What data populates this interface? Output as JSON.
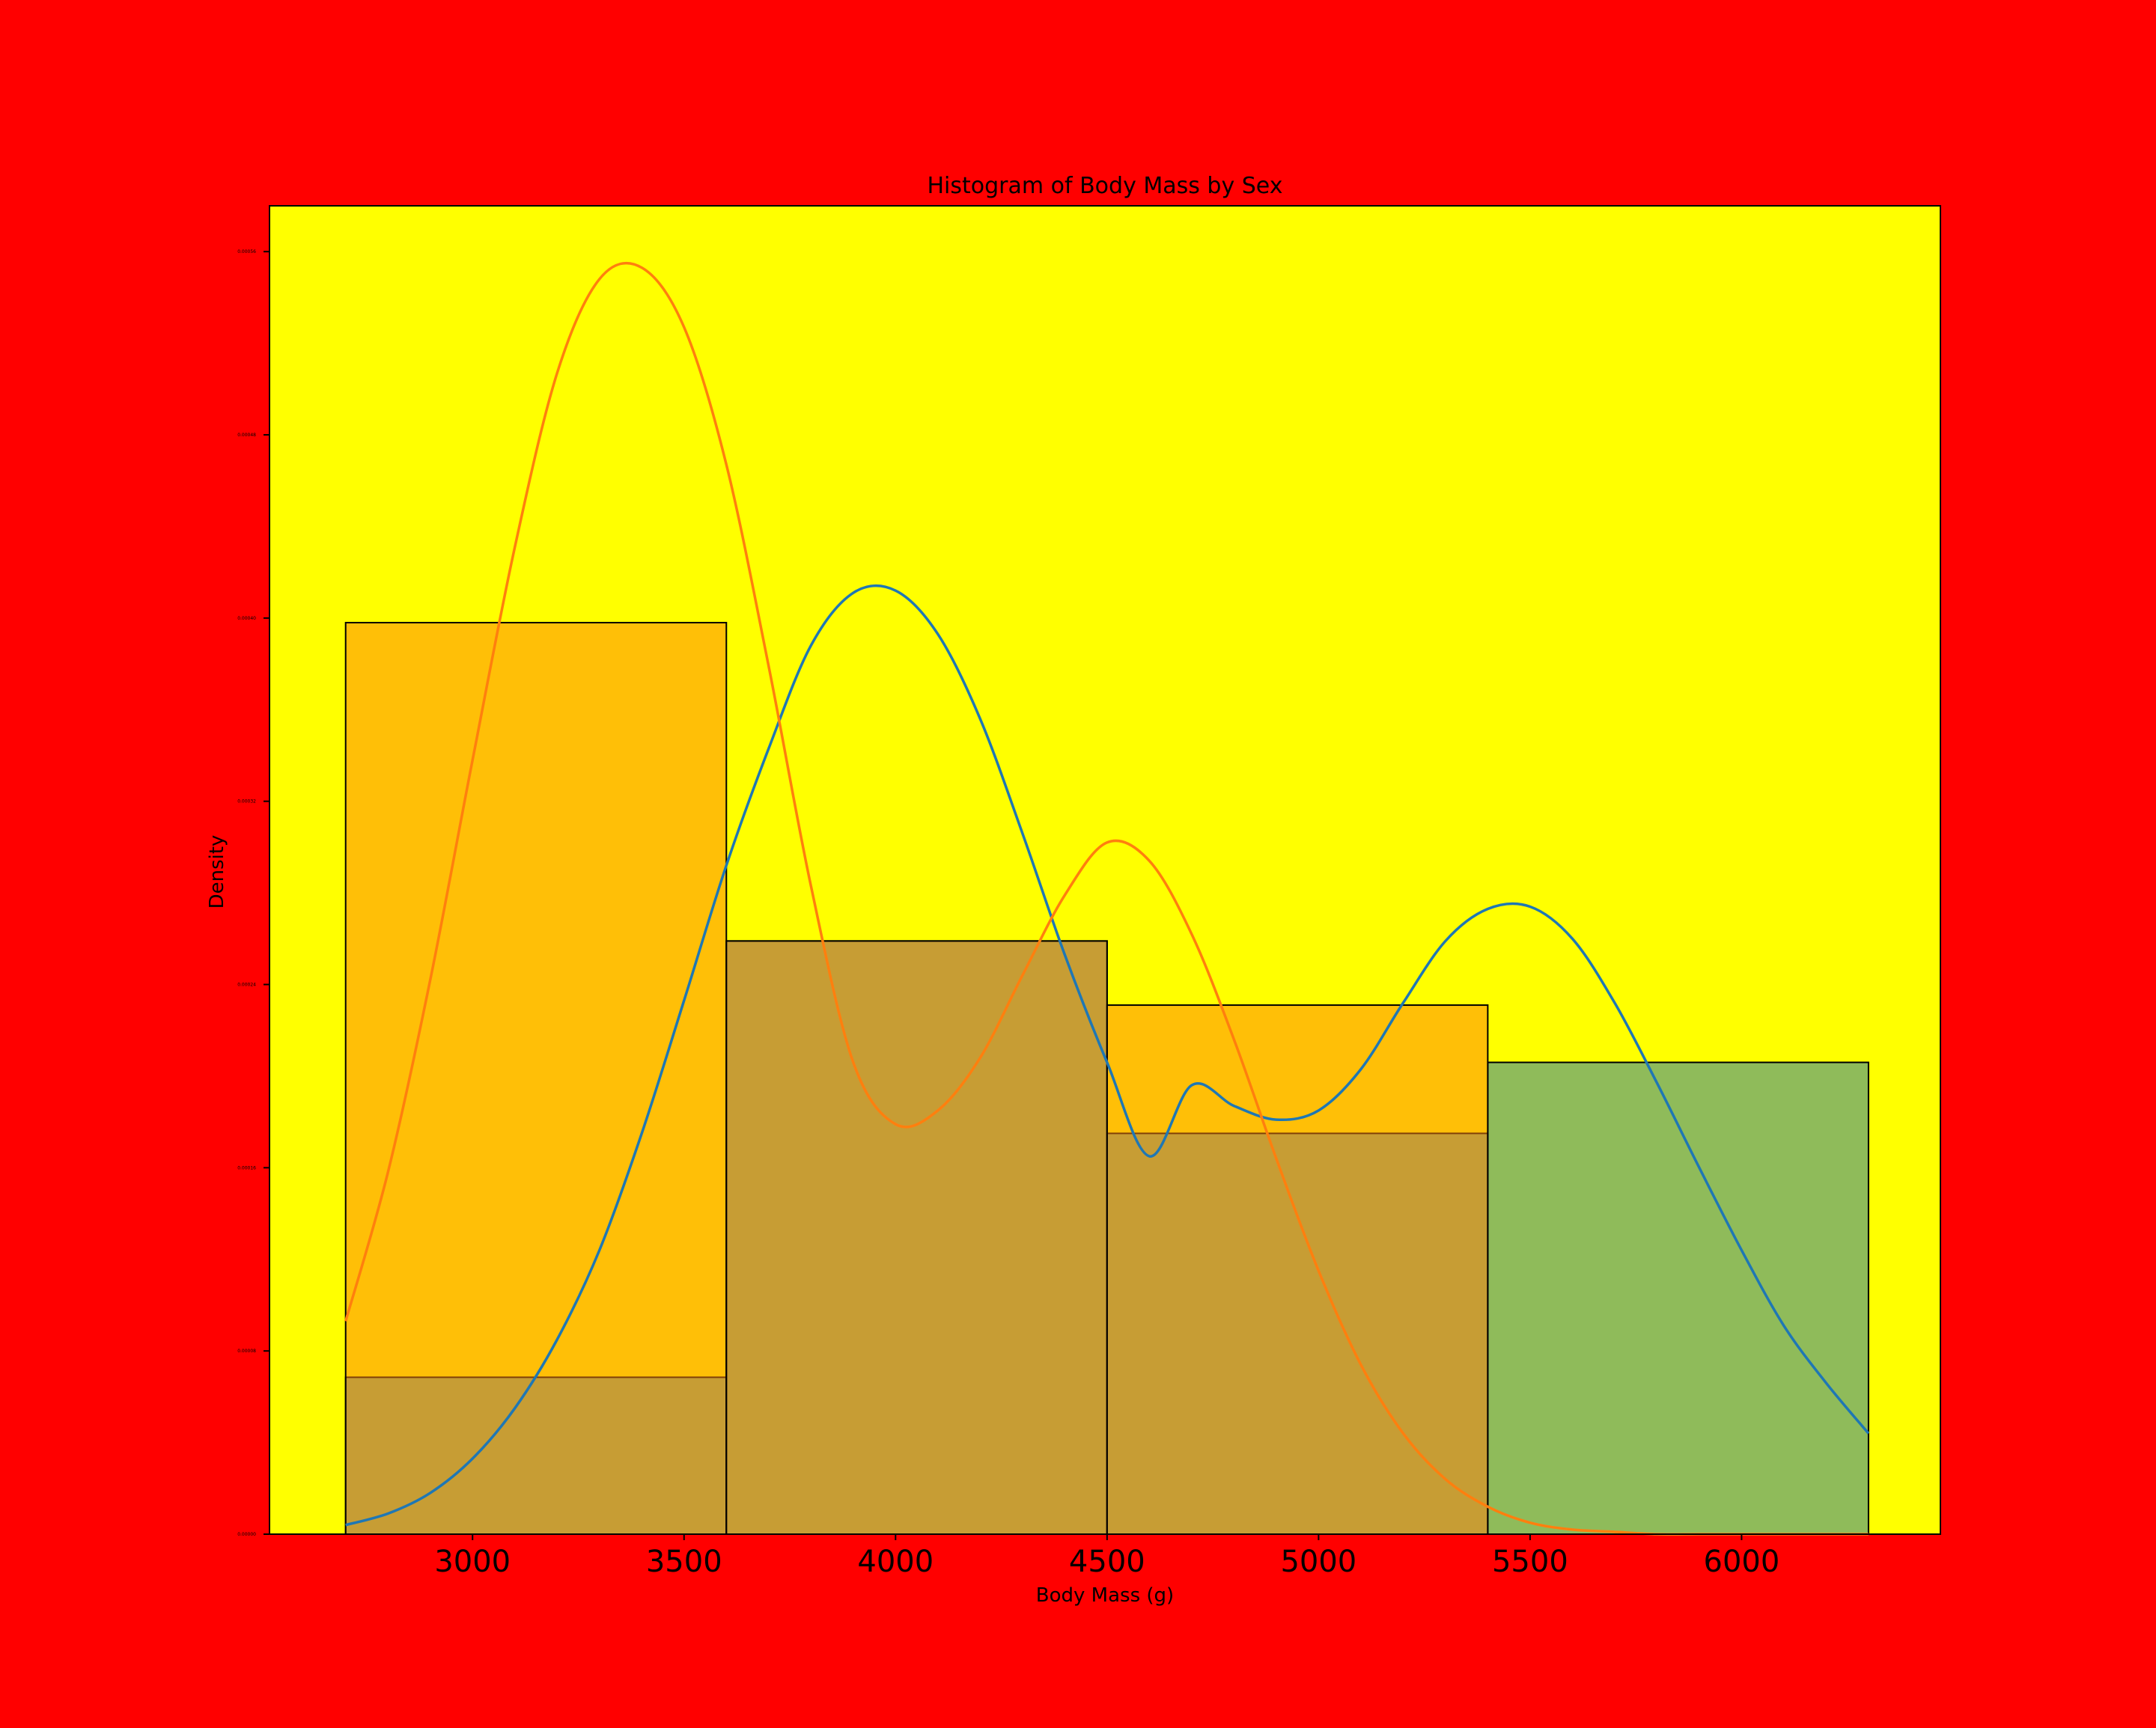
{
  "chart_data": {
    "type": "bar",
    "title": "Histogram of Body Mass by Sex",
    "xlabel": "Body Mass (g)",
    "ylabel": "Density",
    "xlim": [
      2520,
      6470
    ],
    "ylim": [
      0,
      0.00058
    ],
    "x_ticks": [
      {
        "value": 3000,
        "label": "3000"
      },
      {
        "value": 3500,
        "label": "3500"
      },
      {
        "value": 4000,
        "label": "4000"
      },
      {
        "value": 4500,
        "label": "4500"
      },
      {
        "value": 5000,
        "label": "5000"
      },
      {
        "value": 5500,
        "label": "5500"
      },
      {
        "value": 6000,
        "label": "6000"
      }
    ],
    "y_ticks": [
      {
        "value": 0.0,
        "label": "0.00000"
      },
      {
        "value": 8e-05,
        "label": "0.00008"
      },
      {
        "value": 0.00016,
        "label": "0.00016"
      },
      {
        "value": 0.00024,
        "label": "0.00024"
      },
      {
        "value": 0.00032,
        "label": "0.00032"
      },
      {
        "value": 0.0004,
        "label": "0.00040"
      },
      {
        "value": 0.00048,
        "label": "0.00048"
      },
      {
        "value": 0.00056,
        "label": "0.00056"
      }
    ],
    "bin_edges": [
      2700,
      3600,
      4500,
      5400,
      6300
    ],
    "grid": false,
    "series": [
      {
        "key": "blue",
        "histogram_values": [
          6.85e-05,
          0.000259,
          0.000175,
          0.000206
        ],
        "kde_x": [
          2700,
          2800,
          2900,
          3000,
          3100,
          3200,
          3300,
          3400,
          3500,
          3600,
          3700,
          3800,
          3900,
          4000,
          4100,
          4200,
          4300,
          4400,
          4500,
          4600,
          4700,
          4800,
          4900,
          5000,
          5100,
          5200,
          5300,
          5400,
          5500,
          5600,
          5700,
          5800,
          5900,
          6000,
          6100,
          6200,
          6300
        ],
        "kde_y": [
          4e-06,
          9e-06,
          1.8e-05,
          3.3e-05,
          5.5e-05,
          8.5e-05,
          0.000124,
          0.000175,
          0.000233,
          0.000292,
          0.000343,
          0.000388,
          0.000411,
          0.000412,
          0.000393,
          0.000356,
          0.000306,
          0.000253,
          0.000206,
          0.000165,
          0.000196,
          0.000187,
          0.000181,
          0.000185,
          0.000203,
          0.000232,
          0.000259,
          0.000273,
          0.000274,
          0.00026,
          0.000232,
          0.000197,
          0.00016,
          0.000124,
          9.1e-05,
          6.6e-05,
          4.4e-05
        ]
      },
      {
        "key": "orange",
        "histogram_values": [
          0.000398,
          0.000259,
          0.000231,
          0.0
        ],
        "kde_x": [
          2700,
          2800,
          2900,
          3000,
          3100,
          3200,
          3300,
          3400,
          3500,
          3600,
          3700,
          3800,
          3900,
          4000,
          4100,
          4200,
          4300,
          4400,
          4500,
          4600,
          4700,
          4800,
          4900,
          5000,
          5100,
          5200,
          5300,
          5400,
          5500,
          5600,
          5700,
          5800,
          5900,
          6000,
          6100,
          6200,
          6300
        ],
        "kde_y": [
          9.3e-05,
          0.000158,
          0.000242,
          0.000338,
          0.000431,
          0.000507,
          0.000548,
          0.000553,
          0.000527,
          0.000467,
          0.000379,
          0.000283,
          0.000206,
          0.000179,
          0.000185,
          0.000208,
          0.000244,
          0.000279,
          0.000302,
          0.000294,
          0.000262,
          0.000216,
          0.000164,
          0.000115,
          7.4e-05,
          4.4e-05,
          2.4e-05,
          1.2e-05,
          5e-06,
          2e-06,
          1e-06,
          0.0,
          0.0,
          0.0,
          0.0,
          0.0,
          0.0
        ]
      }
    ],
    "colors": {
      "figure_bg": "#ff0000",
      "axes_bg": "#ffff00",
      "blue_bar": "#1f77b4",
      "orange_bar": "#ff7f0e",
      "blue_line": "#1f77b4",
      "orange_line": "#ff7f0e"
    }
  }
}
